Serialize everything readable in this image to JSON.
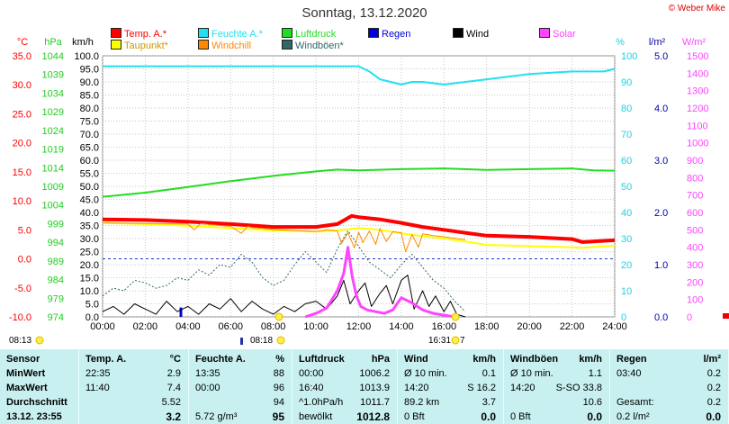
{
  "title": "Sonntag, 13.12.2020",
  "copyright": "© Weber Mike",
  "legend": [
    {
      "label": "Temp. A.*",
      "color": "#ff0000"
    },
    {
      "label": "Feuchte A.*",
      "color": "#22e0f0"
    },
    {
      "label": "Luftdruck",
      "color": "#22dd22"
    },
    {
      "label": "Regen",
      "color": "#0000dd"
    },
    {
      "label": "Wind",
      "color": "#000000"
    },
    {
      "label": "Solar",
      "color": "#ff44ff"
    },
    {
      "label": "Taupunkt*",
      "color": "#ffff00"
    },
    {
      "label": "Windchill",
      "color": "#ff8800"
    },
    {
      "label": "Windböen*",
      "color": "#336666"
    }
  ],
  "axis_units": {
    "temp": "°C",
    "pressure": "hPa",
    "wind": "km/h",
    "humidity": "%",
    "rain": "l/m²",
    "solar": "W/m²"
  },
  "sun_marks": {
    "sunrise_1": "08:13",
    "sunrise_2": "08:18",
    "sunset_1": "16:31",
    "sunset_2": "7"
  },
  "chart_data": {
    "type": "line",
    "x_label_ticks": [
      "00:00",
      "02:00",
      "04:00",
      "06:00",
      "08:00",
      "10:00",
      "12:00",
      "14:00",
      "16:00",
      "18:00",
      "20:00",
      "22:00",
      "24:00"
    ],
    "xlim": [
      0,
      24
    ],
    "axes": {
      "temp": {
        "ticks": [
          "35.0",
          "30.0",
          "25.0",
          "20.0",
          "15.0",
          "10.0",
          "5.0",
          "0.0",
          "-5.0",
          "-10.0"
        ],
        "ylim": [
          -10,
          35
        ],
        "color": "#ff0000"
      },
      "pressure": {
        "ticks": [
          "1044",
          "1039",
          "1034",
          "1029",
          "1024",
          "1019",
          "1014",
          "1009",
          "1004",
          "999",
          "994",
          "989",
          "984",
          "979",
          "974"
        ],
        "ylim": [
          974,
          1044
        ],
        "color": "#22cc22"
      },
      "wind": {
        "ticks": [
          "100.0",
          "95.0",
          "90.0",
          "85.0",
          "80.0",
          "75.0",
          "70.0",
          "65.0",
          "60.0",
          "55.0",
          "50.0",
          "45.0",
          "40.0",
          "35.0",
          "30.0",
          "25.0",
          "20.0",
          "15.0",
          "10.0",
          "5.0",
          "0.0"
        ],
        "ylim": [
          0,
          100
        ],
        "color": "#000000"
      },
      "humidity": {
        "ticks": [
          "100",
          "90",
          "80",
          "70",
          "60",
          "50",
          "40",
          "30",
          "20",
          "10",
          "0"
        ],
        "ylim": [
          0,
          100
        ],
        "color": "#22d0e0"
      },
      "rain": {
        "ticks": [
          "5.0",
          "4.0",
          "3.0",
          "2.0",
          "1.0",
          "0.0"
        ],
        "ylim": [
          0,
          5
        ],
        "color": "#0000aa"
      },
      "solar": {
        "ticks": [
          "1500",
          "1400",
          "1300",
          "1200",
          "1100",
          "1000",
          "900",
          "800",
          "700",
          "600",
          "500",
          "400",
          "300",
          "200",
          "100",
          "0"
        ],
        "ylim": [
          0,
          1500
        ],
        "color": "#ff44ff"
      }
    },
    "series": [
      {
        "name": "Temp. A.*",
        "axis": "temp",
        "color": "#ff0000",
        "width": 4,
        "x": [
          0,
          2,
          4,
          6,
          8,
          10,
          11,
          11.67,
          12,
          13,
          14,
          15,
          16,
          17,
          18,
          20,
          22,
          22.5,
          24
        ],
        "y": [
          6.8,
          6.7,
          6.4,
          6.0,
          5.5,
          5.5,
          6.0,
          7.4,
          7.2,
          6.8,
          6.2,
          5.5,
          5.0,
          4.5,
          4.0,
          3.8,
          3.4,
          2.9,
          3.2
        ]
      },
      {
        "name": "Taupunkt*",
        "axis": "temp",
        "color": "#ffff00",
        "width": 2,
        "x": [
          0,
          2,
          4,
          6,
          8,
          10,
          11,
          12,
          13,
          14,
          15,
          16,
          17,
          18,
          20,
          22,
          22.5,
          24
        ],
        "y": [
          6.2,
          6.0,
          5.7,
          5.3,
          4.9,
          4.7,
          4.9,
          5.3,
          5.0,
          4.4,
          3.9,
          3.5,
          3.0,
          2.4,
          2.2,
          2.0,
          1.9,
          2.3
        ]
      },
      {
        "name": "Feuchte A.*",
        "axis": "humidity",
        "color": "#22e0f0",
        "width": 2,
        "x": [
          0,
          4,
          8,
          10,
          11,
          12,
          12.5,
          13,
          14,
          14.5,
          15,
          16,
          17,
          18,
          20,
          22,
          23.5,
          24
        ],
        "y": [
          96,
          96,
          96,
          96,
          96,
          96,
          94,
          91,
          89,
          90,
          90,
          89,
          90,
          91,
          93,
          94,
          94,
          95
        ]
      },
      {
        "name": "Luftdruck",
        "axis": "pressure",
        "color": "#22dd22",
        "width": 2,
        "x": [
          0,
          2,
          4,
          6,
          8,
          10,
          11,
          12,
          14,
          16,
          18,
          20,
          22,
          23,
          24
        ],
        "y": [
          1006.2,
          1007.3,
          1008.8,
          1010.4,
          1011.8,
          1013.0,
          1013.5,
          1013.3,
          1013.6,
          1013.8,
          1013.4,
          1013.6,
          1013.8,
          1013.3,
          1013.2
        ]
      },
      {
        "name": "Windböen*",
        "axis": "wind",
        "color": "#336666",
        "width": 1,
        "dash": true,
        "x": [
          0,
          0.5,
          1,
          1.5,
          2,
          2.5,
          3,
          3.5,
          4,
          4.5,
          5,
          5.5,
          6,
          6.5,
          7,
          7.5,
          8,
          8.5,
          9,
          9.5,
          10,
          10.5,
          11,
          11.5,
          12,
          12.5,
          13,
          13.5,
          14,
          14.5,
          15,
          15.5,
          16,
          16.5,
          17
        ],
        "y": [
          8,
          11,
          10,
          14,
          13,
          11,
          12,
          15,
          14,
          18,
          16,
          20,
          19,
          24,
          21,
          15,
          12,
          14,
          20,
          25,
          21,
          17,
          26,
          33,
          27,
          21,
          18,
          15,
          20,
          24,
          19,
          14,
          11,
          6,
          2
        ]
      },
      {
        "name": "Windchill",
        "axis": "temp",
        "color": "#ff8800",
        "width": 1,
        "x": [
          0,
          4,
          4.3,
          4.6,
          5,
          6,
          6.5,
          6.8,
          7,
          8,
          9,
          10,
          10.5,
          11,
          11.2,
          11.5,
          11.8,
          12,
          12.2,
          12.5,
          12.8,
          13,
          13.3,
          13.6,
          14,
          14.2,
          14.5,
          14.8,
          15,
          15.5,
          16,
          17
        ],
        "y": [
          6.2,
          6.0,
          5.0,
          6.1,
          5.9,
          5.6,
          4.4,
          5.6,
          5.4,
          5.1,
          4.9,
          4.7,
          5.0,
          4.8,
          2.7,
          4.5,
          1.9,
          4.6,
          2.8,
          4.8,
          2.5,
          5.2,
          3.0,
          4.7,
          4.5,
          1.2,
          4.2,
          2.0,
          4.3,
          4.0,
          3.8,
          3.3
        ]
      },
      {
        "name": "Wind",
        "axis": "wind",
        "color": "#000000",
        "width": 1,
        "x": [
          0,
          0.5,
          1,
          1.5,
          2,
          2.5,
          3,
          3.5,
          4,
          4.5,
          5,
          5.5,
          6,
          6.5,
          7,
          7.5,
          8,
          8.5,
          9,
          9.5,
          10,
          10.5,
          11,
          11.3,
          11.6,
          12,
          12.3,
          12.6,
          13,
          13.3,
          13.6,
          14,
          14.3,
          14.6,
          15,
          15.3,
          15.6,
          16,
          16.3,
          16.6,
          17
        ],
        "y": [
          2,
          4,
          1,
          5,
          3,
          1,
          6,
          2,
          4,
          1,
          5,
          3,
          7,
          2,
          6,
          3,
          1,
          4,
          2,
          5,
          6,
          3,
          8,
          14,
          5,
          10,
          13,
          4,
          9,
          12,
          5,
          14,
          16,
          3,
          10,
          4,
          8,
          2,
          6,
          1,
          0
        ]
      },
      {
        "name": "Solar",
        "axis": "solar",
        "color": "#ff44ff",
        "width": 3,
        "x": [
          9.5,
          10,
          10.5,
          11,
          11.3,
          11.5,
          11.7,
          11.9,
          12.1,
          12.4,
          12.8,
          13.2,
          13.6,
          14,
          14.5,
          15,
          15.5,
          16,
          16.5
        ],
        "y": [
          0,
          20,
          50,
          150,
          250,
          400,
          230,
          120,
          60,
          40,
          30,
          20,
          40,
          110,
          80,
          40,
          20,
          10,
          0
        ]
      }
    ],
    "regen_bars": [
      {
        "x": 3.67,
        "y": 0.18
      },
      {
        "x": 8.2,
        "y": 0.05
      }
    ]
  },
  "stats": {
    "columns": [
      {
        "head": [
          "Sensor"
        ],
        "rows": [
          [
            "MinWert"
          ],
          [
            "MaxWert"
          ],
          [
            "Durchschnitt"
          ],
          [
            "13.12.  23:55"
          ]
        ]
      },
      {
        "head": [
          "Temp. A.",
          "°C"
        ],
        "rows": [
          [
            "22:35",
            "2.9"
          ],
          [
            "11:40",
            "7.4"
          ],
          [
            "",
            "5.52"
          ],
          [
            "",
            "3.2"
          ]
        ]
      },
      {
        "head": [
          "Feuchte A.",
          "%"
        ],
        "rows": [
          [
            "13:35",
            "88"
          ],
          [
            "00:00",
            "96"
          ],
          [
            "",
            "94"
          ],
          [
            "5.72 g/m³",
            "95"
          ]
        ]
      },
      {
        "head": [
          "Luftdruck",
          "hPa"
        ],
        "rows": [
          [
            "00:00",
            "1006.2"
          ],
          [
            "16:40",
            "1013.9"
          ],
          [
            "^1.0hPa/h",
            "1011.7"
          ],
          [
            "bewölkt",
            "1012.8"
          ]
        ]
      },
      {
        "head": [
          "Wind",
          "km/h"
        ],
        "rows": [
          [
            "Ø 10 min.",
            "0.1"
          ],
          [
            "14:20",
            "S 16.2"
          ],
          [
            "89.2 km",
            "3.7"
          ],
          [
            "0 Bft",
            "0.0"
          ]
        ]
      },
      {
        "head": [
          "Windböen",
          "km/h"
        ],
        "rows": [
          [
            "Ø 10 min.",
            "1.1"
          ],
          [
            "14:20",
            "S-SO 33.8"
          ],
          [
            "",
            "10.6"
          ],
          [
            "0 Bft",
            "0.0"
          ]
        ]
      },
      {
        "head": [
          "Regen",
          "l/m²"
        ],
        "rows": [
          [
            "03:40",
            "0.2"
          ],
          [
            "",
            "0.2"
          ],
          [
            "Gesamt:",
            "0.2"
          ],
          [
            "0.2 l/m²",
            "0.0"
          ]
        ]
      }
    ]
  }
}
